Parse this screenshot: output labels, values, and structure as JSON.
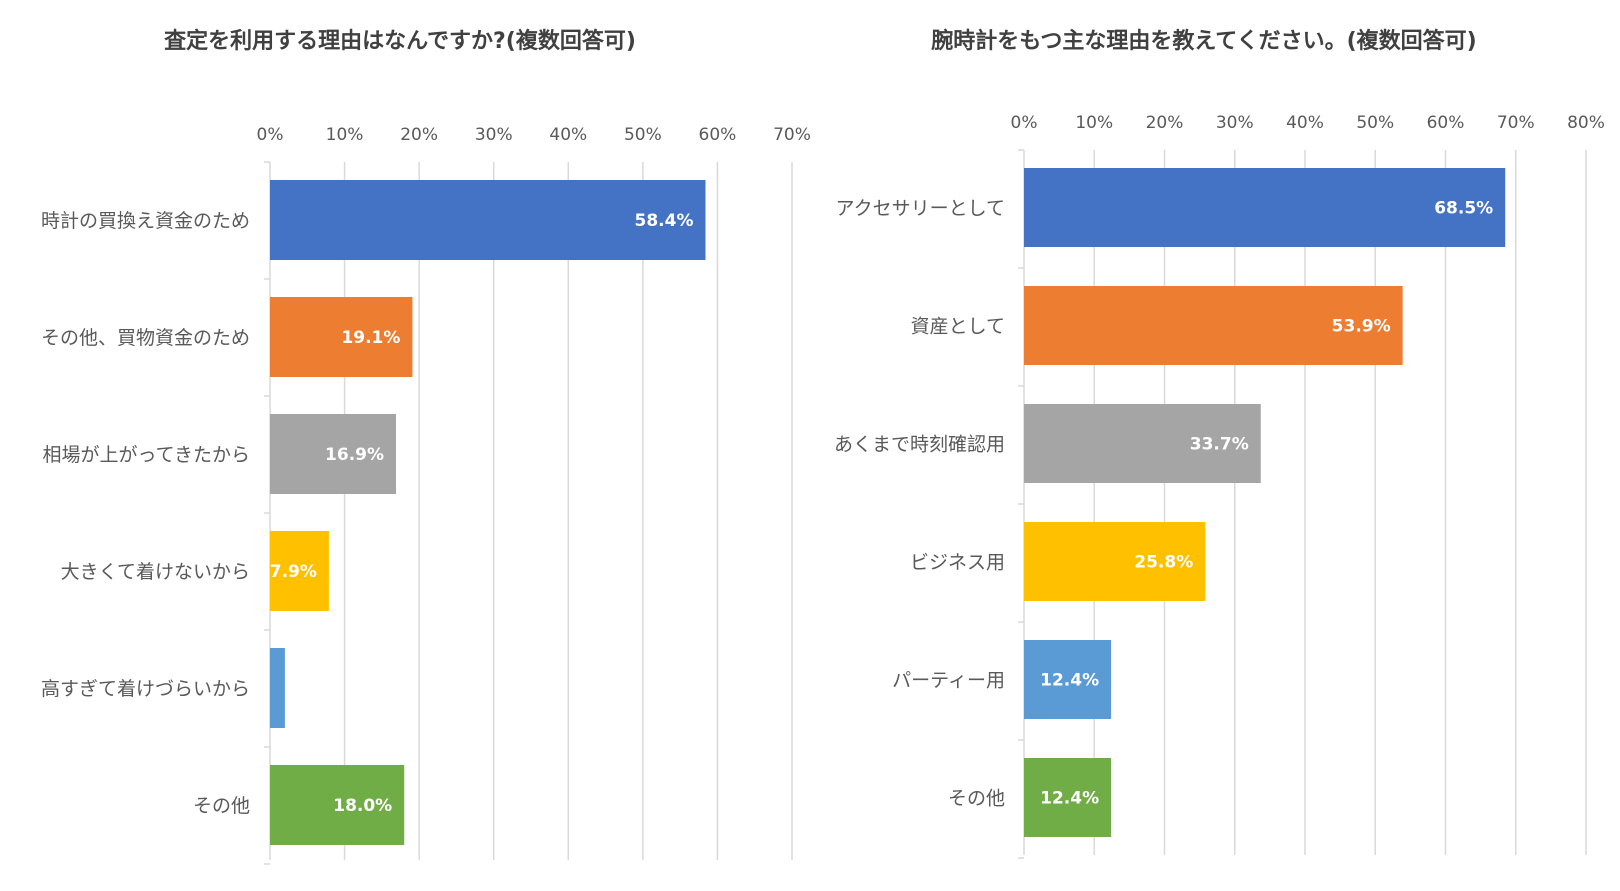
{
  "chart_data": [
    {
      "type": "bar",
      "orientation": "horizontal",
      "title": "査定を利用する理由はなんですか?(複数回答可)",
      "categories": [
        "時計の買換え資金のため",
        "その他、買物資金のため",
        "相場が上がってきたから",
        "大きくて着けないから",
        "高すぎて着けづらいから",
        "その他"
      ],
      "values": [
        58.4,
        19.1,
        16.9,
        7.9,
        2.0,
        18.0
      ],
      "data_labels": [
        "58.4%",
        "19.1%",
        "16.9%",
        "7.9%",
        "",
        "18.0%"
      ],
      "colors": [
        "#4472c4",
        "#ed7d31",
        "#a5a5a5",
        "#ffc000",
        "#5b9bd5",
        "#70ad47"
      ],
      "xlim": [
        0,
        70
      ],
      "ticks": [
        "0%",
        "10%",
        "20%",
        "30%",
        "40%",
        "50%",
        "60%",
        "70%"
      ],
      "xlabel": "",
      "ylabel": "",
      "grid": true,
      "axis_position": "top"
    },
    {
      "type": "bar",
      "orientation": "horizontal",
      "title": "腕時計をもつ主な理由を教えてください。(複数回答可)",
      "categories": [
        "アクセサリーとして",
        "資産として",
        "あくまで時刻確認用",
        "ビジネス用",
        "パーティー用",
        "その他"
      ],
      "values": [
        68.5,
        53.9,
        33.7,
        25.8,
        12.4,
        12.4
      ],
      "data_labels": [
        "68.5%",
        "53.9%",
        "33.7%",
        "25.8%",
        "12.4%",
        "12.4%"
      ],
      "colors": [
        "#4472c4",
        "#ed7d31",
        "#a5a5a5",
        "#ffc000",
        "#5b9bd5",
        "#70ad47"
      ],
      "xlim": [
        0,
        80
      ],
      "ticks": [
        "0%",
        "10%",
        "20%",
        "30%",
        "40%",
        "50%",
        "60%",
        "70%",
        "80%"
      ],
      "xlabel": "",
      "ylabel": "",
      "grid": true,
      "axis_position": "top"
    }
  ]
}
